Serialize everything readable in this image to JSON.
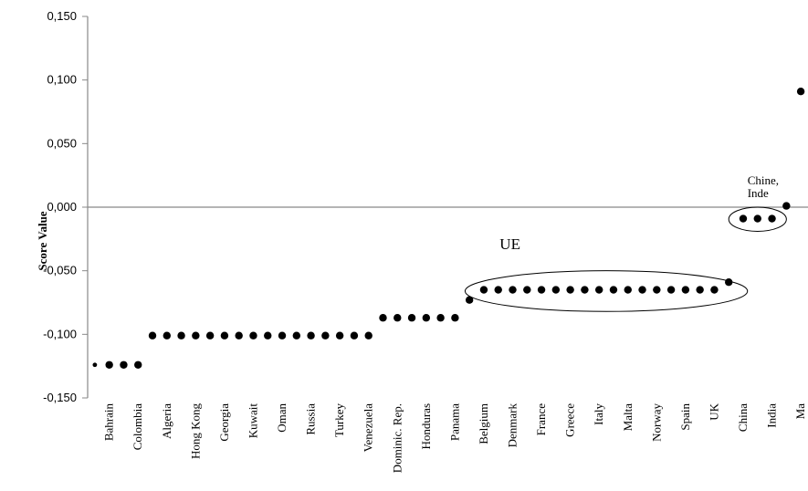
{
  "chart_data": {
    "type": "scatter",
    "title": "",
    "xlabel": "",
    "ylabel": "Score Value",
    "ylim": [
      -0.15,
      0.15
    ],
    "yticks": [
      "0,150",
      "0,100",
      "0,050",
      "0,000",
      "-0,050",
      "-0,100",
      "-0,150"
    ],
    "ytick_values": [
      0.15,
      0.1,
      0.05,
      0.0,
      -0.05,
      -0.1,
      -0.15
    ],
    "x_labels": [
      "Bahrain",
      "Colombia",
      "Algeria",
      "Hong Kong",
      "Georgia",
      "Kuwait",
      "Oman",
      "Russia",
      "Turkey",
      "Venezuela",
      "Dominic. Rep.",
      "Honduras",
      "Panama",
      "Belgium",
      "Denmark",
      "France",
      "Greece",
      "Italy",
      "Malta",
      "Norway",
      "Spain",
      "UK",
      "China",
      "India",
      "Ma"
    ],
    "x_label_positions": [
      1.5,
      3.5,
      5.5,
      7.5,
      9.5,
      11.5,
      13.5,
      15.5,
      17.5,
      19.5,
      21.5,
      23.5,
      25.5,
      27.5,
      29.5,
      31.5,
      33.5,
      35.5,
      37.5,
      39.5,
      41.5,
      43.5,
      45.5,
      47.5,
      49.5
    ],
    "x_count": 50,
    "values": [
      -0.124,
      -0.124,
      -0.124,
      -0.124,
      -0.101,
      -0.101,
      -0.101,
      -0.101,
      -0.101,
      -0.101,
      -0.101,
      -0.101,
      -0.101,
      -0.101,
      -0.101,
      -0.101,
      -0.101,
      -0.101,
      -0.101,
      -0.101,
      -0.087,
      -0.087,
      -0.087,
      -0.087,
      -0.087,
      -0.087,
      -0.073,
      -0.065,
      -0.065,
      -0.065,
      -0.065,
      -0.065,
      -0.065,
      -0.065,
      -0.065,
      -0.065,
      -0.065,
      -0.065,
      -0.065,
      -0.065,
      -0.065,
      -0.065,
      -0.065,
      -0.065,
      -0.059,
      -0.009,
      -0.009,
      -0.009,
      0.001,
      0.091
    ],
    "annotations": [
      {
        "lines": [
          "UE"
        ],
        "x": 28.6,
        "y": -0.033,
        "size": 17
      },
      {
        "lines": [
          "Chine,",
          "Inde"
        ],
        "x": 45.8,
        "y": 0.018,
        "size": 13
      }
    ],
    "groups": [
      {
        "name": "ue-group",
        "cx": 36.0,
        "cy": -0.066,
        "rx": 9.8,
        "ry": 0.016
      },
      {
        "name": "chine-inde-group",
        "cx": 46.5,
        "cy": -0.0095,
        "rx": 2.0,
        "ry": 0.0095
      }
    ],
    "grid": false,
    "legend": "none"
  }
}
